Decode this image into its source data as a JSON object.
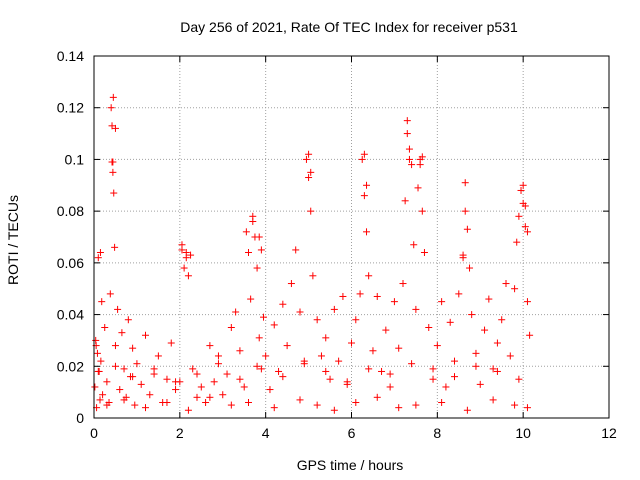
{
  "chart_data": {
    "type": "scatter",
    "title": "Day 256 of 2021, Rate Of TEC Index for receiver p531",
    "xlabel": "GPS time / hours",
    "ylabel": "ROTI / TECUs",
    "xlim": [
      0,
      12
    ],
    "ylim": [
      0,
      0.14
    ],
    "xticks": [
      0,
      2,
      4,
      6,
      8,
      10,
      12
    ],
    "yticks": [
      0,
      0.02,
      0.04,
      0.06,
      0.08,
      0.1,
      0.12,
      0.14
    ],
    "xtick_labels": [
      "0",
      "2",
      "4",
      "6",
      "8",
      "10",
      "12"
    ],
    "ytick_labels": [
      "0",
      "0.02",
      "0.04",
      "0.06",
      "0.08",
      "0.1",
      "0.12",
      "0.14"
    ],
    "grid": true,
    "marker": "plus",
    "color": "#ff0000",
    "series": [
      {
        "name": "p531",
        "x": [
          0.02,
          0.04,
          0.06,
          0.08,
          0.1,
          0.12,
          0.14,
          0.16,
          0.18,
          0.2,
          0.25,
          0.3,
          0.35,
          0.38,
          0.4,
          0.42,
          0.44,
          0.46,
          0.48,
          0.5,
          0.55,
          0.6,
          0.65,
          0.7,
          0.75,
          0.8,
          0.85,
          0.9,
          0.95,
          1.0,
          1.1,
          1.2,
          1.3,
          1.4,
          1.5,
          1.6,
          1.7,
          1.8,
          1.9,
          2.0,
          2.05,
          2.1,
          2.15,
          2.2,
          2.25,
          2.3,
          2.4,
          2.5,
          2.6,
          2.7,
          2.8,
          2.9,
          3.0,
          3.1,
          3.2,
          3.3,
          3.4,
          3.5,
          3.55,
          3.6,
          3.65,
          3.7,
          3.75,
          3.8,
          3.85,
          3.9,
          3.95,
          4.0,
          4.1,
          4.2,
          4.3,
          4.4,
          4.5,
          4.6,
          4.7,
          4.8,
          4.9,
          4.95,
          5.0,
          5.05,
          5.1,
          5.2,
          5.3,
          5.4,
          5.5,
          5.6,
          5.7,
          5.8,
          5.9,
          6.0,
          6.1,
          6.2,
          6.25,
          6.3,
          6.35,
          6.4,
          6.5,
          6.6,
          6.7,
          6.8,
          6.9,
          7.0,
          7.1,
          7.2,
          7.25,
          7.3,
          7.35,
          7.4,
          7.45,
          7.5,
          7.55,
          7.6,
          7.65,
          7.7,
          7.8,
          7.9,
          8.0,
          8.1,
          8.2,
          8.3,
          8.4,
          8.5,
          8.6,
          8.65,
          8.7,
          8.75,
          8.8,
          8.9,
          9.0,
          9.1,
          9.2,
          9.3,
          9.4,
          9.5,
          9.6,
          9.7,
          9.8,
          9.85,
          9.9,
          9.95,
          10.0,
          10.05,
          10.1,
          10.15,
          0.05,
          0.15,
          0.45,
          0.5,
          0.42,
          0.44,
          2.05,
          2.15,
          3.7,
          3.85,
          3.9,
          5.0,
          5.05,
          6.3,
          6.35,
          7.3,
          7.35,
          7.6,
          7.65,
          8.6,
          8.65,
          10.0,
          10.05,
          10.1,
          0.3,
          0.7,
          1.2,
          1.7,
          2.2,
          2.7,
          3.2,
          3.6,
          4.2,
          4.8,
          5.2,
          5.6,
          6.1,
          6.6,
          7.1,
          7.5,
          8.1,
          8.7,
          9.3,
          9.8,
          10.1,
          0.1,
          0.5,
          0.9,
          1.4,
          1.9,
          2.4,
          2.9,
          3.4,
          3.8,
          4.4,
          4.9,
          5.4,
          5.9,
          6.4,
          6.9,
          7.4,
          7.9,
          8.4,
          8.9,
          9.4,
          9.9
        ],
        "y": [
          0.012,
          0.03,
          0.004,
          0.025,
          0.062,
          0.018,
          0.007,
          0.022,
          0.045,
          0.009,
          0.035,
          0.014,
          0.006,
          0.048,
          0.12,
          0.113,
          0.099,
          0.087,
          0.066,
          0.028,
          0.042,
          0.011,
          0.033,
          0.019,
          0.008,
          0.038,
          0.016,
          0.027,
          0.005,
          0.021,
          0.013,
          0.032,
          0.009,
          0.017,
          0.024,
          0.006,
          0.015,
          0.029,
          0.011,
          0.014,
          0.067,
          0.058,
          0.064,
          0.055,
          0.063,
          0.019,
          0.008,
          0.012,
          0.006,
          0.028,
          0.014,
          0.024,
          0.009,
          0.017,
          0.035,
          0.041,
          0.026,
          0.012,
          0.072,
          0.064,
          0.046,
          0.076,
          0.07,
          0.058,
          0.031,
          0.019,
          0.039,
          0.024,
          0.011,
          0.036,
          0.018,
          0.044,
          0.028,
          0.052,
          0.065,
          0.041,
          0.021,
          0.1,
          0.093,
          0.08,
          0.055,
          0.038,
          0.024,
          0.031,
          0.015,
          0.042,
          0.022,
          0.047,
          0.013,
          0.029,
          0.038,
          0.048,
          0.1,
          0.086,
          0.072,
          0.055,
          0.026,
          0.047,
          0.018,
          0.034,
          0.012,
          0.045,
          0.027,
          0.052,
          0.084,
          0.11,
          0.104,
          0.098,
          0.067,
          0.042,
          0.089,
          0.1,
          0.08,
          0.064,
          0.035,
          0.019,
          0.028,
          0.045,
          0.012,
          0.037,
          0.022,
          0.048,
          0.062,
          0.091,
          0.073,
          0.058,
          0.04,
          0.025,
          0.013,
          0.034,
          0.046,
          0.019,
          0.029,
          0.038,
          0.052,
          0.024,
          0.05,
          0.068,
          0.078,
          0.088,
          0.083,
          0.074,
          0.045,
          0.032,
          0.028,
          0.064,
          0.124,
          0.112,
          0.099,
          0.095,
          0.065,
          0.062,
          0.078,
          0.07,
          0.065,
          0.102,
          0.095,
          0.102,
          0.09,
          0.115,
          0.1,
          0.098,
          0.101,
          0.063,
          0.08,
          0.09,
          0.082,
          0.072,
          0.005,
          0.007,
          0.004,
          0.006,
          0.003,
          0.008,
          0.005,
          0.006,
          0.004,
          0.007,
          0.005,
          0.003,
          0.006,
          0.008,
          0.004,
          0.005,
          0.006,
          0.003,
          0.007,
          0.005,
          0.004,
          0.018,
          0.02,
          0.016,
          0.019,
          0.014,
          0.017,
          0.021,
          0.015,
          0.02,
          0.016,
          0.022,
          0.018,
          0.014,
          0.019,
          0.017,
          0.021,
          0.015,
          0.016,
          0.02,
          0.018,
          0.015
        ]
      }
    ]
  }
}
